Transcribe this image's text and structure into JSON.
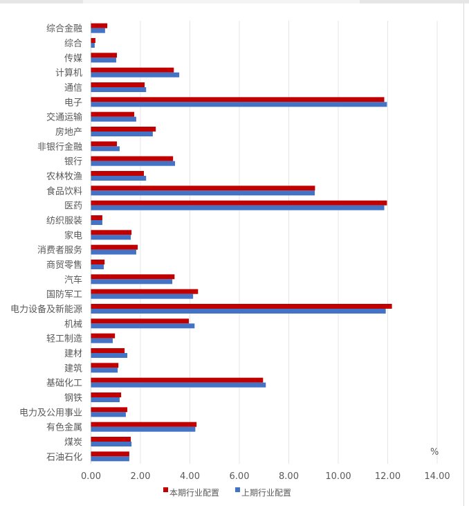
{
  "chart_data": {
    "type": "bar",
    "orientation": "horizontal",
    "title": "",
    "xlabel": "",
    "unit_label": "%",
    "ylabel": "",
    "xlim": [
      0,
      14
    ],
    "xticks": [
      "0.00",
      "2.00",
      "4.00",
      "6.00",
      "8.00",
      "10.00",
      "12.00",
      "14.00"
    ],
    "grid": true,
    "legend_position": "bottom",
    "categories": [
      "综合金融",
      "综合",
      "传媒",
      "计算机",
      "通信",
      "电子",
      "交通运输",
      "房地产",
      "非银行金融",
      "银行",
      "农林牧渔",
      "食品饮料",
      "医药",
      "纺织服装",
      "家电",
      "消费者服务",
      "商贸零售",
      "汽车",
      "国防军工",
      "电力设备及新能源",
      "机械",
      "轻工制造",
      "建材",
      "建筑",
      "基础化工",
      "钢铁",
      "电力及公用事业",
      "有色金属",
      "煤炭",
      "石油石化"
    ],
    "series": [
      {
        "name": "本期行业配置",
        "color": "#c00000",
        "values": [
          0.66,
          0.18,
          1.05,
          3.35,
          2.17,
          11.86,
          1.75,
          2.62,
          1.05,
          3.32,
          2.14,
          9.06,
          11.97,
          0.46,
          1.64,
          1.89,
          0.55,
          3.38,
          4.33,
          12.17,
          3.96,
          0.97,
          1.36,
          1.11,
          6.96,
          1.22,
          1.47,
          4.27,
          1.61,
          1.55
        ]
      },
      {
        "name": "上期行业配置",
        "color": "#4472c4",
        "values": [
          0.57,
          0.15,
          1.02,
          3.57,
          2.23,
          11.97,
          1.83,
          2.5,
          1.16,
          3.4,
          2.23,
          9.05,
          11.86,
          0.46,
          1.61,
          1.83,
          0.52,
          3.29,
          4.13,
          11.92,
          4.19,
          0.88,
          1.47,
          1.08,
          7.07,
          1.16,
          1.41,
          4.22,
          1.64,
          1.55
        ]
      }
    ]
  }
}
